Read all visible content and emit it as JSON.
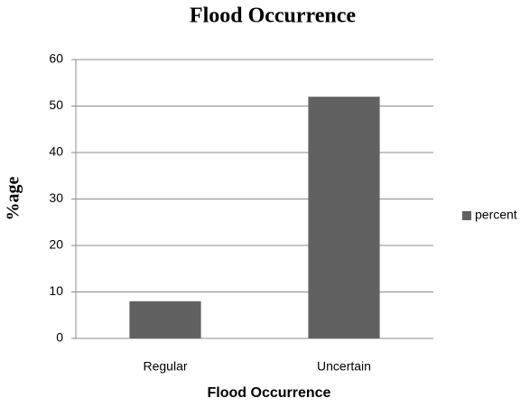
{
  "chart_data": {
    "type": "bar",
    "title": "Flood Occurrence",
    "x_label": "Flood Occurrence",
    "y_label": "%age",
    "categories": [
      "Regular",
      "Uncertain"
    ],
    "series": [
      {
        "name": "percent",
        "color": "#616161",
        "values": [
          8,
          52
        ]
      }
    ],
    "ylim": [
      0,
      60
    ],
    "yticks": [
      0,
      10,
      20,
      30,
      40,
      50,
      60
    ],
    "grid": true,
    "legend": "right"
  }
}
